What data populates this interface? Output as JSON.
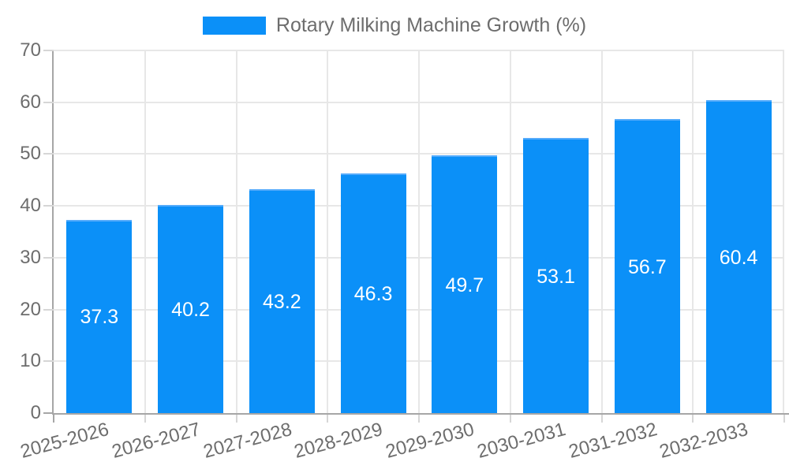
{
  "chart_data": {
    "type": "bar",
    "title": "Rotary Milking Machine Growth (%)",
    "categories": [
      "2025-2026",
      "2026-2027",
      "2027-2028",
      "2028-2029",
      "2029-2030",
      "2030-2031",
      "2031-2032",
      "2032-2033"
    ],
    "series": [
      {
        "name": "Rotary Milking Machine Growth (%)",
        "values": [
          37.3,
          40.2,
          43.2,
          46.3,
          49.7,
          53.1,
          56.7,
          60.4
        ]
      }
    ],
    "value_labels": [
      "37.3",
      "40.2",
      "43.2",
      "46.3",
      "49.7",
      "53.1",
      "56.7",
      "60.4"
    ],
    "xlabel": "",
    "ylabel": "",
    "ylim": [
      0,
      70
    ],
    "yticks": [
      0,
      10,
      20,
      30,
      40,
      50,
      60,
      70
    ],
    "grid": true,
    "legend_position": "top-center",
    "x_label_rotation_deg": -15,
    "colors": {
      "bar_fill": "#0b90f8",
      "bar_border": "#55abfb",
      "grid": "#e7e7e7",
      "axis": "#a6a6a6",
      "tick_mark": "#d6d6d6",
      "tick_label": "#6d6d6d",
      "legend_text": "#6d6d6d",
      "value_label": "#ffffff"
    }
  }
}
